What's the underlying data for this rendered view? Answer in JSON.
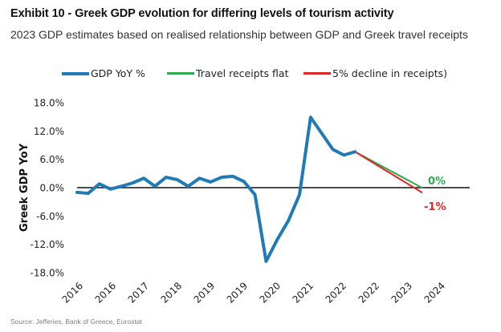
{
  "header": {
    "title": "Exhibit 10 - Greek GDP evolution for differing levels of tourism activity",
    "subtitle": "2023 GDP estimates based on realised relationship between GDP and Greek travel receipts"
  },
  "footer": {
    "source": "Source: Jefferies, Bank of Greece, Eurostat"
  },
  "chart_data": {
    "type": "line",
    "title": "Exhibit 10 - Greek GDP evolution for differing levels of tourism activity",
    "subtitle": "2023 GDP estimates based on realised relationship between GDP and Greek travel receipts",
    "xlabel": "",
    "ylabel": "Greek GDP YoY",
    "ylim": [
      -18,
      18
    ],
    "yticks": [
      18,
      12,
      6,
      0,
      -6,
      -12,
      -18
    ],
    "ytick_labels": [
      "18.0%",
      "12.0%",
      "6.0%",
      "0.0%",
      "-6.0%",
      "-12.0%",
      "-18.0%"
    ],
    "xtick_labels": [
      "2016",
      "2016",
      "2017",
      "2018",
      "2019",
      "2019",
      "2020",
      "2021",
      "2022",
      "2022",
      "2023",
      "2024"
    ],
    "x_period_count": 38,
    "legend_position": "top",
    "grid": false,
    "zero_line": true,
    "series": [
      {
        "name": "GDP YoY %",
        "color": "#1f7bb6",
        "start_index": 0,
        "values": [
          -1.0,
          -1.2,
          0.8,
          -0.3,
          0.3,
          1.0,
          2.0,
          0.3,
          2.2,
          1.7,
          0.3,
          2.0,
          1.2,
          2.2,
          2.4,
          1.3,
          -1.5,
          -15.6,
          -11.0,
          -7.0,
          -1.5,
          14.9,
          11.5,
          8.1,
          6.9,
          7.6
        ]
      },
      {
        "name": "Travel receipts flat",
        "color": "#2eaa4f",
        "start_index": 25,
        "values": [
          7.6,
          0.0
        ],
        "end_index": 31
      },
      {
        "name": "5% decline in receipts)",
        "color": "#e02626",
        "start_index": 25,
        "values": [
          7.6,
          -1.0
        ],
        "end_index": 31
      }
    ],
    "annotations": [
      {
        "text": "0%",
        "color": "#2eaa4f",
        "series": "Travel receipts flat"
      },
      {
        "text": "-1%",
        "color": "#e02626",
        "series": "5% decline in receipts)"
      }
    ]
  }
}
